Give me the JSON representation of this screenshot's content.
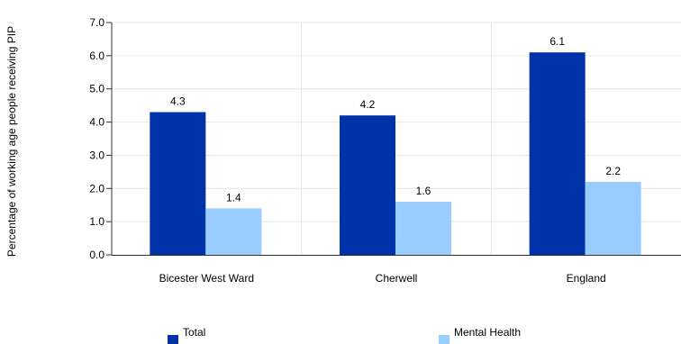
{
  "chart_data": {
    "type": "bar",
    "ylabel": "Percentage of working age people receiving PIP",
    "xlabel": "",
    "categories": [
      "Bicester West Ward",
      "Cherwell",
      "England"
    ],
    "series": [
      {
        "name": "Total",
        "values": [
          4.3,
          4.2,
          6.1
        ],
        "color": "#0033aa"
      },
      {
        "name": "Mental Health",
        "values": [
          1.4,
          1.6,
          2.2
        ],
        "color": "#99ccff"
      }
    ],
    "ylim": [
      0,
      7
    ],
    "yticks": [
      "0.0",
      "1.0",
      "2.0",
      "3.0",
      "4.0",
      "5.0",
      "6.0",
      "7.0"
    ],
    "grid": true,
    "legend": "bottom"
  }
}
